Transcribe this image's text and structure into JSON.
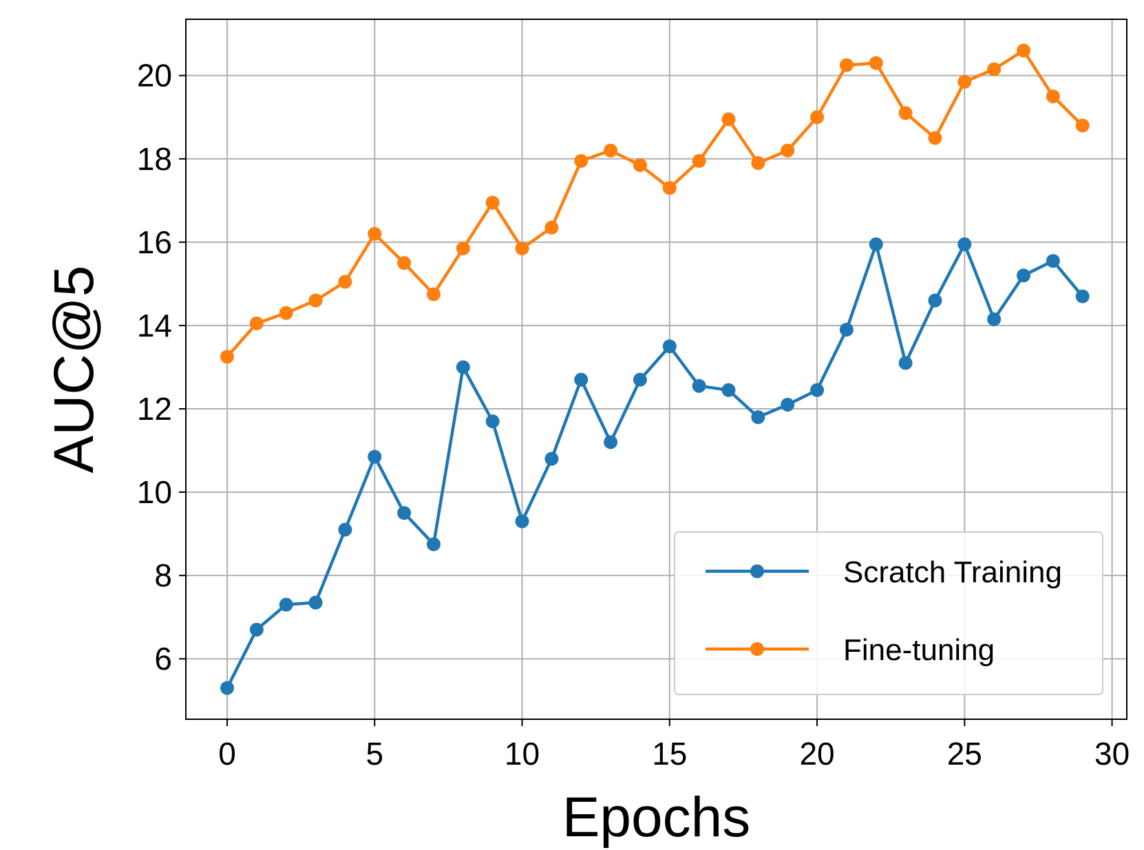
{
  "chart_data": {
    "type": "line",
    "xlabel": "Epochs",
    "ylabel": "AUC@5",
    "xlim": [
      -1.4,
      30.5
    ],
    "ylim": [
      4.55,
      21.35
    ],
    "xticks": [
      0,
      5,
      10,
      15,
      20,
      25,
      30
    ],
    "yticks": [
      6,
      8,
      10,
      12,
      14,
      16,
      18,
      20
    ],
    "grid": true,
    "legend_position": "lower-right",
    "x": [
      0,
      1,
      2,
      3,
      4,
      5,
      6,
      7,
      8,
      9,
      10,
      11,
      12,
      13,
      14,
      15,
      16,
      17,
      18,
      19,
      20,
      21,
      22,
      23,
      24,
      25,
      26,
      27,
      28,
      29
    ],
    "series": [
      {
        "name": "Scratch Training",
        "color": "#1f77b4",
        "values": [
          5.3,
          6.7,
          7.3,
          7.35,
          9.1,
          10.85,
          9.5,
          8.75,
          13.0,
          11.7,
          9.3,
          10.8,
          12.7,
          11.2,
          12.7,
          13.5,
          12.55,
          12.45,
          11.8,
          12.1,
          12.45,
          13.9,
          15.95,
          13.1,
          14.6,
          15.95,
          14.15,
          15.2,
          15.55,
          14.7
        ]
      },
      {
        "name": "Fine-tuning",
        "color": "#ff7f0e",
        "values": [
          13.25,
          14.05,
          14.3,
          14.6,
          15.05,
          16.2,
          15.5,
          14.75,
          15.85,
          16.95,
          15.85,
          16.35,
          17.95,
          18.2,
          17.85,
          17.3,
          17.95,
          18.95,
          17.9,
          18.2,
          19.0,
          20.25,
          20.3,
          19.1,
          18.5,
          19.85,
          20.15,
          20.6,
          19.5,
          18.8
        ]
      }
    ]
  }
}
